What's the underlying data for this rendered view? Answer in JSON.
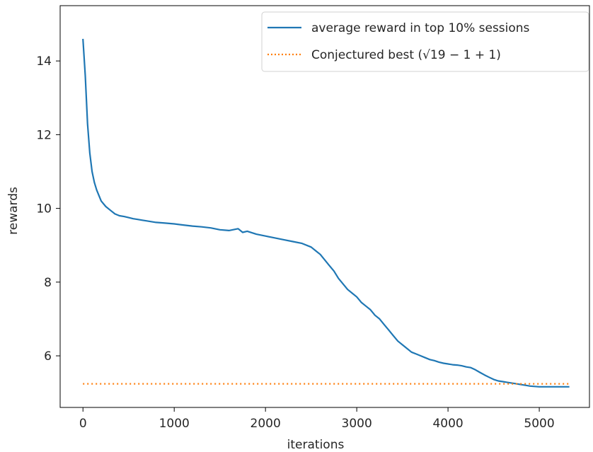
{
  "chart_data": {
    "type": "line",
    "title": "",
    "xlabel": "iterations",
    "ylabel": "rewards",
    "xlim": [
      -250,
      5550
    ],
    "ylim": [
      4.6,
      15.5
    ],
    "grid": false,
    "legend_position": "top-right",
    "x_ticks": [
      0,
      1000,
      2000,
      3000,
      4000,
      5000
    ],
    "y_ticks": [
      6,
      8,
      10,
      12,
      14
    ],
    "series": [
      {
        "name": "average reward in top 10% sessions",
        "color": "#1f77b4",
        "style": "solid",
        "x": [
          0,
          25,
          50,
          75,
          100,
          125,
          150,
          175,
          200,
          250,
          300,
          350,
          400,
          450,
          500,
          550,
          600,
          650,
          700,
          800,
          900,
          1000,
          1100,
          1200,
          1300,
          1400,
          1500,
          1600,
          1700,
          1750,
          1800,
          1900,
          2000,
          2100,
          2200,
          2300,
          2400,
          2500,
          2550,
          2600,
          2650,
          2700,
          2750,
          2800,
          2850,
          2900,
          2950,
          3000,
          3050,
          3100,
          3150,
          3200,
          3250,
          3300,
          3350,
          3400,
          3450,
          3500,
          3550,
          3600,
          3650,
          3700,
          3750,
          3800,
          3850,
          3900,
          3950,
          4000,
          4050,
          4100,
          4150,
          4200,
          4250,
          4300,
          4350,
          4400,
          4450,
          4500,
          4550,
          4600,
          4650,
          4700,
          4750,
          4800,
          4850,
          4900,
          4950,
          5000,
          5100,
          5200,
          5330
        ],
        "values": [
          14.6,
          13.6,
          12.3,
          11.5,
          11.0,
          10.7,
          10.5,
          10.35,
          10.2,
          10.05,
          9.95,
          9.85,
          9.8,
          9.78,
          9.75,
          9.72,
          9.7,
          9.68,
          9.66,
          9.62,
          9.6,
          9.58,
          9.55,
          9.52,
          9.5,
          9.47,
          9.42,
          9.4,
          9.45,
          9.35,
          9.38,
          9.3,
          9.25,
          9.2,
          9.15,
          9.1,
          9.05,
          8.95,
          8.85,
          8.75,
          8.6,
          8.45,
          8.3,
          8.1,
          7.95,
          7.8,
          7.7,
          7.6,
          7.45,
          7.35,
          7.25,
          7.1,
          7.0,
          6.85,
          6.7,
          6.55,
          6.4,
          6.3,
          6.2,
          6.1,
          6.05,
          6.0,
          5.95,
          5.9,
          5.87,
          5.83,
          5.8,
          5.78,
          5.76,
          5.75,
          5.73,
          5.7,
          5.68,
          5.62,
          5.55,
          5.48,
          5.42,
          5.36,
          5.32,
          5.3,
          5.28,
          5.26,
          5.24,
          5.22,
          5.2,
          5.18,
          5.17,
          5.16,
          5.16,
          5.16,
          5.16
        ]
      },
      {
        "name": "Conjectured best (√19 − 1 + 1)",
        "color": "#ff7f0e",
        "style": "dotted",
        "x": [
          0,
          5330
        ],
        "values": [
          5.24,
          5.24
        ]
      }
    ]
  }
}
